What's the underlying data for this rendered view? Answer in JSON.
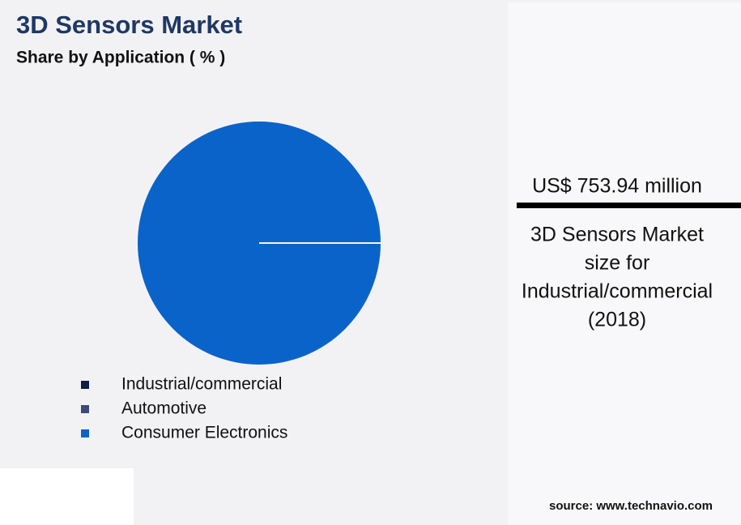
{
  "chart_data": {
    "type": "pie",
    "title": "3D Sensors Market",
    "subtitle": "Share by Application ( % )",
    "categories": [
      "Industrial/commercial",
      "Automotive",
      "Consumer Electronics"
    ],
    "values": [
      0,
      0,
      100
    ],
    "colors": [
      "#0d1f45",
      "#3b4a7a",
      "#0a63c9"
    ]
  },
  "highlight": {
    "value": "US$ 753.94 million",
    "description": [
      "3D Sensors Market",
      "size for",
      "Industrial/commercial",
      "(2018)"
    ]
  },
  "source": "source: www.technavio.com"
}
